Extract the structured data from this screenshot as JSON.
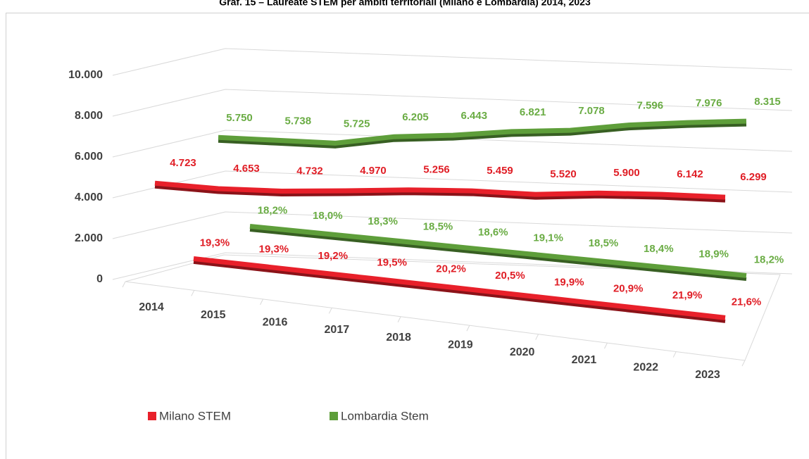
{
  "chart_data": {
    "type": "line3d",
    "title": "Graf. 15 – Laureate STEM per ambiti territoriali (Milano e Lombardia) 2014, 2023",
    "categories": [
      "2014",
      "2015",
      "2016",
      "2017",
      "2018",
      "2019",
      "2020",
      "2021",
      "2022",
      "2023"
    ],
    "ylim": [
      0,
      10000
    ],
    "yticks": [
      0,
      {
        "value": 2000,
        "label": "2.000"
      },
      {
        "value": 4000,
        "label": "4.000"
      },
      {
        "value": 6000,
        "label": "6.000"
      },
      {
        "value": 8000,
        "label": "8.000"
      },
      {
        "value": 10000,
        "label": "10.000"
      }
    ],
    "grid": true,
    "legend": "bottom-left",
    "series": [
      {
        "name": "Milano STEM",
        "color": "#e8202a",
        "label_color": "#e01e26",
        "values": [
          4723,
          4653,
          4732,
          4970,
          5256,
          5459,
          5520,
          5900,
          6142,
          6299
        ],
        "value_labels": [
          "4.723",
          "4.653",
          "4.732",
          "4.970",
          "5.256",
          "5.459",
          "5.520",
          "5.900",
          "6.142",
          "6.299"
        ],
        "shares": [
          19.3,
          19.3,
          19.2,
          19.5,
          20.2,
          20.5,
          19.9,
          20.9,
          21.9,
          21.6
        ],
        "share_labels": [
          "19,3%",
          "19,3%",
          "19,2%",
          "19,5%",
          "20,2%",
          "20,5%",
          "19,9%",
          "20,9%",
          "21,9%",
          "21,6%"
        ]
      },
      {
        "name": "Lombardia Stem",
        "color": "#5e9e3a",
        "label_color": "#6aac44",
        "values": [
          5750,
          5738,
          5725,
          6205,
          6443,
          6821,
          7078,
          7596,
          7976,
          8315
        ],
        "value_labels": [
          "5.750",
          "5.738",
          "5.725",
          "6.205",
          "6.443",
          "6.821",
          "7.078",
          "7.596",
          "7.976",
          "8.315"
        ],
        "shares": [
          18.2,
          18.0,
          18.3,
          18.5,
          18.6,
          19.1,
          18.5,
          18.4,
          18.9,
          18.2
        ],
        "share_labels": [
          "18,2%",
          "18,0%",
          "18,3%",
          "18,5%",
          "18,6%",
          "19,1%",
          "18,5%",
          "18,4%",
          "18,9%",
          "18,2%"
        ]
      }
    ]
  }
}
